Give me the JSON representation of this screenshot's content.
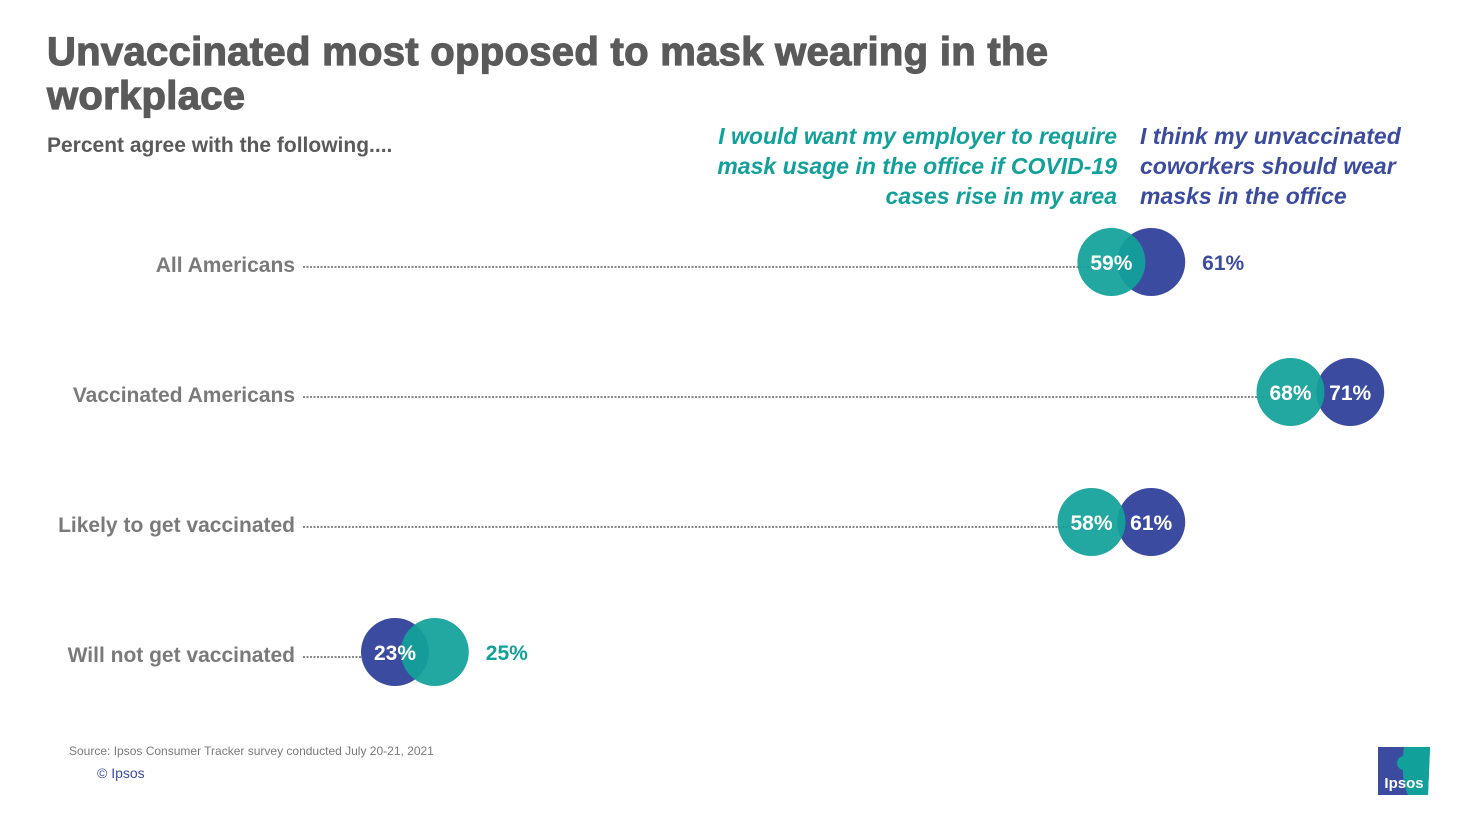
{
  "title": "Unvaccinated most opposed to mask wearing in the workplace",
  "subtitle": "Percent agree with the following....",
  "chart_data": {
    "type": "dot",
    "categories": [
      "All Americans",
      "Vaccinated Americans",
      "Likely to get vaccinated",
      "Will not get vaccinated"
    ],
    "series": [
      {
        "name": "I would want my employer to require mask usage in the office if COVID-19 cases rise in my area",
        "color": "#12A19A",
        "values": [
          59,
          68,
          58,
          25
        ],
        "labels": [
          "59%",
          "68%",
          "58%",
          "25%"
        ]
      },
      {
        "name": "I think my unvaccinated coworkers should wear masks in the office",
        "color": "#3B4BA0",
        "values": [
          61,
          71,
          61,
          23
        ],
        "labels": [
          "61%",
          "71%",
          "61%",
          "23%"
        ]
      }
    ],
    "unit": "%",
    "grid": false
  },
  "footer": {
    "source": "Source: Ipsos Consumer Tracker survey conducted July 20-21, 2021",
    "copyright": "© Ipsos",
    "logo_text": "Ipsos"
  }
}
